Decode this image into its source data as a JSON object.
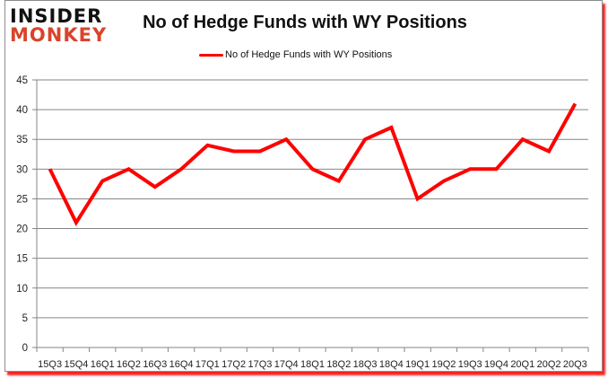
{
  "logo": {
    "line1": "INSIDER",
    "line2": "MONKEY"
  },
  "chart_data": {
    "type": "line",
    "title": "No of Hedge Funds with WY Positions",
    "xlabel": "",
    "ylabel": "",
    "ylim": [
      0,
      45
    ],
    "yticks": [
      0,
      5,
      10,
      15,
      20,
      25,
      30,
      35,
      40,
      45
    ],
    "grid": true,
    "legend_position": "top",
    "categories": [
      "15Q3",
      "15Q4",
      "16Q1",
      "16Q2",
      "16Q3",
      "16Q4",
      "17Q1",
      "17Q2",
      "17Q3",
      "17Q4",
      "18Q1",
      "18Q2",
      "18Q3",
      "18Q4",
      "19Q1",
      "19Q2",
      "19Q3",
      "19Q4",
      "20Q1",
      "20Q2",
      "20Q3"
    ],
    "series": [
      {
        "name": "No of Hedge Funds with WY Positions",
        "color": "#ff0000",
        "values": [
          30,
          21,
          28,
          30,
          27,
          30,
          34,
          33,
          33,
          35,
          30,
          28,
          35,
          37,
          25,
          28,
          30,
          30,
          35,
          33,
          41
        ]
      }
    ]
  }
}
